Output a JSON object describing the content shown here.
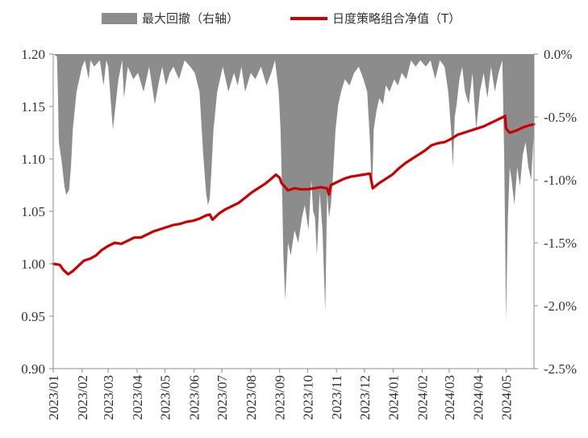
{
  "chart_data": {
    "type": "line",
    "legend": {
      "placement": "top",
      "items": [
        {
          "label": "最大回撤（右轴）",
          "kind": "area",
          "color": "#8c8c8c"
        },
        {
          "label": "日度策略组合净值（T）",
          "kind": "line",
          "color": "#cc0000"
        }
      ]
    },
    "left_axis": {
      "ylim": [
        0.9,
        1.2
      ],
      "ticks": [
        "0.90",
        "0.95",
        "1.00",
        "1.05",
        "1.10",
        "1.15",
        "1.20"
      ]
    },
    "right_axis": {
      "ylim": [
        -2.5,
        0.0
      ],
      "ticks": [
        "-2.5%",
        "-2.0%",
        "-1.5%",
        "-1.0%",
        "-0.5%",
        "0.0%"
      ]
    },
    "x_axis": {
      "range": [
        "2023-01-01",
        "2024-05-31"
      ],
      "ticks": [
        "2023/01",
        "2023/02",
        "2023/03",
        "2023/04",
        "2023/05",
        "2023/06",
        "2023/07",
        "2023/08",
        "2023/09",
        "2023/10",
        "2023/11",
        "2023/12",
        "2024/01",
        "2024/02",
        "2024/03",
        "2024/04",
        "2024/05"
      ]
    },
    "grid": false,
    "series": [
      {
        "name": "日度策略组合净值（T）",
        "axis": "left",
        "color": "#cc0000",
        "x": [
          "2023-01-01",
          "2023-01-08",
          "2023-01-12",
          "2023-01-17",
          "2023-01-22",
          "2023-01-28",
          "2023-02-03",
          "2023-02-10",
          "2023-02-16",
          "2023-02-22",
          "2023-03-01",
          "2023-03-08",
          "2023-03-15",
          "2023-03-22",
          "2023-03-29",
          "2023-04-05",
          "2023-04-12",
          "2023-04-19",
          "2023-04-26",
          "2023-05-03",
          "2023-05-10",
          "2023-05-17",
          "2023-05-24",
          "2023-05-31",
          "2023-06-07",
          "2023-06-14",
          "2023-06-18",
          "2023-06-21",
          "2023-06-28",
          "2023-07-05",
          "2023-07-12",
          "2023-07-19",
          "2023-07-26",
          "2023-08-02",
          "2023-08-09",
          "2023-08-16",
          "2023-08-23",
          "2023-08-28",
          "2023-09-01",
          "2023-09-03",
          "2023-09-10",
          "2023-09-17",
          "2023-09-24",
          "2023-10-01",
          "2023-10-08",
          "2023-10-15",
          "2023-10-22",
          "2023-10-24",
          "2023-10-26",
          "2023-11-02",
          "2023-11-09",
          "2023-11-16",
          "2023-11-23",
          "2023-11-30",
          "2023-12-07",
          "2023-12-10",
          "2023-12-17",
          "2023-12-24",
          "2023-12-31",
          "2024-01-07",
          "2024-01-14",
          "2024-01-21",
          "2024-01-28",
          "2024-02-04",
          "2024-02-11",
          "2024-02-18",
          "2024-02-25",
          "2024-03-03",
          "2024-03-10",
          "2024-03-17",
          "2024-03-24",
          "2024-03-31",
          "2024-04-07",
          "2024-04-14",
          "2024-04-21",
          "2024-04-28",
          "2024-04-30",
          "2024-05-01",
          "2024-05-05",
          "2024-05-12",
          "2024-05-19",
          "2024-05-26",
          "2024-05-31"
        ],
        "values": [
          1.0,
          0.999,
          0.994,
          0.99,
          0.993,
          0.998,
          1.003,
          1.005,
          1.008,
          1.013,
          1.017,
          1.02,
          1.019,
          1.022,
          1.025,
          1.025,
          1.028,
          1.031,
          1.033,
          1.035,
          1.037,
          1.038,
          1.04,
          1.041,
          1.043,
          1.046,
          1.047,
          1.042,
          1.048,
          1.052,
          1.055,
          1.058,
          1.063,
          1.068,
          1.072,
          1.076,
          1.081,
          1.085,
          1.082,
          1.077,
          1.07,
          1.072,
          1.071,
          1.071,
          1.072,
          1.073,
          1.072,
          1.066,
          1.075,
          1.078,
          1.081,
          1.083,
          1.084,
          1.085,
          1.086,
          1.072,
          1.077,
          1.081,
          1.085,
          1.091,
          1.096,
          1.1,
          1.104,
          1.108,
          1.113,
          1.115,
          1.116,
          1.119,
          1.123,
          1.125,
          1.127,
          1.129,
          1.131,
          1.134,
          1.137,
          1.14,
          1.141,
          1.129,
          1.125,
          1.127,
          1.13,
          1.132,
          1.133
        ]
      },
      {
        "name": "最大回撤（右轴）",
        "axis": "right",
        "color": "#8c8c8c",
        "x": [
          "2023-01-01",
          "2023-01-05",
          "2023-01-06",
          "2023-01-07",
          "2023-01-10",
          "2023-01-13",
          "2023-01-15",
          "2023-01-18",
          "2023-01-20",
          "2023-01-22",
          "2023-01-26",
          "2023-02-01",
          "2023-02-04",
          "2023-02-08",
          "2023-02-10",
          "2023-02-14",
          "2023-02-20",
          "2023-02-24",
          "2023-02-27",
          "2023-03-01",
          "2023-03-06",
          "2023-03-12",
          "2023-03-16",
          "2023-03-18",
          "2023-03-22",
          "2023-03-28",
          "2023-04-02",
          "2023-04-08",
          "2023-04-14",
          "2023-04-20",
          "2023-04-25",
          "2023-04-28",
          "2023-05-02",
          "2023-05-06",
          "2023-05-10",
          "2023-05-16",
          "2023-05-22",
          "2023-05-28",
          "2023-06-02",
          "2023-06-07",
          "2023-06-11",
          "2023-06-14",
          "2023-06-16",
          "2023-06-18",
          "2023-06-20",
          "2023-06-22",
          "2023-06-26",
          "2023-07-02",
          "2023-07-08",
          "2023-07-14",
          "2023-07-18",
          "2023-07-22",
          "2023-07-26",
          "2023-08-01",
          "2023-08-06",
          "2023-08-12",
          "2023-08-18",
          "2023-08-23",
          "2023-08-27",
          "2023-08-31",
          "2023-09-02",
          "2023-09-04",
          "2023-09-05",
          "2023-09-07",
          "2023-09-10",
          "2023-09-13",
          "2023-09-17",
          "2023-09-21",
          "2023-09-25",
          "2023-09-28",
          "2023-10-02",
          "2023-10-05",
          "2023-10-07",
          "2023-10-09",
          "2023-10-11",
          "2023-10-14",
          "2023-10-17",
          "2023-10-20",
          "2023-10-22",
          "2023-10-24",
          "2023-10-26",
          "2023-10-28",
          "2023-10-31",
          "2023-11-03",
          "2023-11-06",
          "2023-11-10",
          "2023-11-15",
          "2023-11-20",
          "2023-11-25",
          "2023-11-30",
          "2023-12-04",
          "2023-12-07",
          "2023-12-09",
          "2023-12-10",
          "2023-12-11",
          "2023-12-14",
          "2023-12-17",
          "2023-12-21",
          "2023-12-24",
          "2023-12-28",
          "2024-01-02",
          "2024-01-06",
          "2024-01-10",
          "2024-01-15",
          "2024-01-20",
          "2024-01-25",
          "2024-01-30",
          "2024-02-05",
          "2024-02-10",
          "2024-02-15",
          "2024-02-20",
          "2024-02-25",
          "2024-02-29",
          "2024-03-03",
          "2024-03-05",
          "2024-03-07",
          "2024-03-09",
          "2024-03-12",
          "2024-03-15",
          "2024-03-18",
          "2024-03-22",
          "2024-03-26",
          "2024-03-30",
          "2024-04-03",
          "2024-04-07",
          "2024-04-11",
          "2024-04-15",
          "2024-04-19",
          "2024-04-23",
          "2024-04-27",
          "2024-04-28",
          "2024-04-29",
          "2024-04-30",
          "2024-05-01",
          "2024-05-03",
          "2024-05-05",
          "2024-05-07",
          "2024-05-10",
          "2024-05-13",
          "2024-05-16",
          "2024-05-19",
          "2024-05-22",
          "2024-05-25",
          "2024-05-28",
          "2024-05-31"
        ],
        "values": [
          0,
          -0.02,
          -0.3,
          -0.7,
          -0.85,
          -1.05,
          -1.12,
          -1.08,
          -0.9,
          -0.6,
          -0.3,
          -0.1,
          -0.05,
          -0.2,
          -0.05,
          -0.1,
          -0.05,
          -0.25,
          -0.05,
          -0.1,
          -0.6,
          -0.2,
          -0.05,
          -0.35,
          -0.1,
          -0.2,
          -0.15,
          -0.3,
          -0.1,
          -0.4,
          -0.2,
          -0.1,
          -0.25,
          -0.15,
          -0.1,
          -0.2,
          -0.05,
          -0.1,
          -0.15,
          -0.3,
          -0.8,
          -1.1,
          -1.2,
          -1.15,
          -0.9,
          -0.6,
          -0.3,
          -0.1,
          -0.3,
          -0.15,
          -0.25,
          -0.1,
          -0.3,
          -0.15,
          -0.2,
          -0.1,
          -0.25,
          -0.15,
          -0.05,
          -0.3,
          -0.6,
          -1.2,
          -1.6,
          -1.95,
          -1.5,
          -1.6,
          -1.4,
          -1.5,
          -1.3,
          -1.2,
          -1.4,
          -1.0,
          -1.25,
          -1.3,
          -1.6,
          -1.1,
          -1.4,
          -2.05,
          -1.1,
          -1.3,
          -1.2,
          -1.0,
          -0.6,
          -0.4,
          -0.3,
          -0.2,
          -0.25,
          -0.15,
          -0.1,
          -0.2,
          -0.3,
          -0.7,
          -1.1,
          -0.9,
          -0.6,
          -0.45,
          -0.35,
          -0.4,
          -0.25,
          -0.3,
          -0.2,
          -0.25,
          -0.15,
          -0.2,
          -0.05,
          -0.1,
          -0.05,
          -0.1,
          -0.05,
          -0.2,
          -0.05,
          -0.1,
          -0.3,
          -0.6,
          -0.9,
          -0.5,
          -0.4,
          -0.2,
          -0.1,
          -0.3,
          -0.4,
          -0.15,
          -0.6,
          -0.3,
          -0.15,
          -0.35,
          -0.1,
          -0.3,
          -0.15,
          -0.05,
          -0.4,
          -0.8,
          -1.4,
          -2.12,
          -1.3,
          -0.9,
          -1.0,
          -1.2,
          -0.9,
          -1.05,
          -0.8,
          -0.7,
          -0.9,
          -1.0,
          -0.6
        ]
      }
    ]
  }
}
